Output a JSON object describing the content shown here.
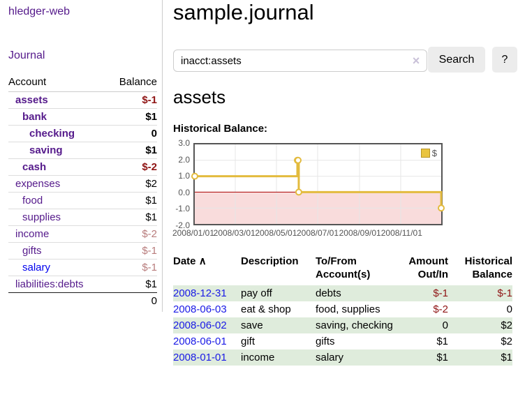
{
  "sidebar": {
    "brand": "hledger-web",
    "journal_link": "Journal",
    "table": {
      "account_header": "Account",
      "balance_header": "Balance",
      "accounts": [
        {
          "name": "assets",
          "depth": 0,
          "bold": true,
          "link": "visited",
          "balance": "$-1",
          "balance_style": "neg-strong"
        },
        {
          "name": "bank",
          "depth": 1,
          "bold": true,
          "link": "visited",
          "balance": "$1",
          "balance_style": "pos-strong"
        },
        {
          "name": "checking",
          "depth": 2,
          "bold": true,
          "link": "visited",
          "balance": "0",
          "balance_style": "pos-strong"
        },
        {
          "name": "saving",
          "depth": 2,
          "bold": true,
          "link": "visited",
          "balance": "$1",
          "balance_style": "pos-strong"
        },
        {
          "name": "cash",
          "depth": 1,
          "bold": true,
          "link": "visited",
          "balance": "$-2",
          "balance_style": "neg-strong"
        },
        {
          "name": "expenses",
          "depth": 0,
          "bold": false,
          "link": "visited",
          "balance": "$2",
          "balance_style": "pos"
        },
        {
          "name": "food",
          "depth": 1,
          "bold": false,
          "link": "visited",
          "balance": "$1",
          "balance_style": "pos"
        },
        {
          "name": "supplies",
          "depth": 1,
          "bold": false,
          "link": "visited",
          "balance": "$1",
          "balance_style": "pos"
        },
        {
          "name": "income",
          "depth": 0,
          "bold": false,
          "link": "visited",
          "balance": "$-2",
          "balance_style": "neg-muted"
        },
        {
          "name": "gifts",
          "depth": 1,
          "bold": false,
          "link": "visited",
          "balance": "$-1",
          "balance_style": "neg-muted"
        },
        {
          "name": "salary",
          "depth": 1,
          "bold": false,
          "link": "unvisited",
          "balance": "$-1",
          "balance_style": "neg-muted"
        },
        {
          "name": "liabilities:debts",
          "depth": 0,
          "bold": false,
          "link": "visited",
          "balance": "$1",
          "balance_style": "pos"
        }
      ],
      "total": "0"
    }
  },
  "main": {
    "title": "sample.journal",
    "search": {
      "value": "inacct:assets",
      "clear_icon": "×",
      "search_button": "Search",
      "help_button": "?"
    },
    "account_heading": "assets",
    "chart_heading": "Historical Balance:"
  },
  "chart_data": {
    "type": "line",
    "step": true,
    "title": "Historical Balance",
    "series": [
      {
        "name": "$",
        "color": "#e3bb3e",
        "points": [
          [
            "2008-01-01",
            1
          ],
          [
            "2008-06-01",
            2
          ],
          [
            "2008-06-02",
            2
          ],
          [
            "2008-06-03",
            0
          ],
          [
            "2008-12-31",
            -1
          ]
        ]
      }
    ],
    "xrange": [
      "2008-01-01",
      "2008-12-31"
    ],
    "ylim": [
      -2,
      3
    ],
    "yticks": [
      3,
      2,
      1,
      0,
      -1,
      -2
    ],
    "ytick_labels": [
      "3.0",
      "2.0",
      "1.0",
      "0.0",
      "-1.0",
      "-2.0"
    ],
    "xtick_dates": [
      "2008-01-01",
      "2008-03-01",
      "2008-05-01",
      "2008-07-01",
      "2008-09-01",
      "2008-11-01"
    ],
    "xtick_labels": [
      "2008/01/01",
      "2008/03/01",
      "2008/05/01",
      "2008/07/01",
      "2008/09/01",
      "2008/11/01"
    ],
    "grid": true,
    "grid_color": "#e6e6e6",
    "zero_line_color": "#aa0000",
    "negative_fill": "#f9dcdc",
    "legend": {
      "label": "$",
      "position": "top-right"
    }
  },
  "register": {
    "headers": {
      "date": "Date",
      "sort_icon": "∧",
      "description": "Description",
      "accounts": "To/From Account(s)",
      "amount": "Amount Out/In",
      "balance": "Historical Balance"
    },
    "rows": [
      {
        "date": "2008-12-31",
        "description": "pay off",
        "accounts": "debts",
        "amount": "$-1",
        "amount_neg": true,
        "balance": "$-1",
        "balance_neg": true
      },
      {
        "date": "2008-06-03",
        "description": "eat & shop",
        "accounts": "food, supplies",
        "amount": "$-2",
        "amount_neg": true,
        "balance": "0",
        "balance_neg": false
      },
      {
        "date": "2008-06-02",
        "description": "save",
        "accounts": "saving, checking",
        "amount": "0",
        "amount_neg": false,
        "balance": "$2",
        "balance_neg": false
      },
      {
        "date": "2008-06-01",
        "description": "gift",
        "accounts": "gifts",
        "amount": "$1",
        "amount_neg": false,
        "balance": "$2",
        "balance_neg": false
      },
      {
        "date": "2008-01-01",
        "description": "income",
        "accounts": "salary",
        "amount": "$1",
        "amount_neg": false,
        "balance": "$1",
        "balance_neg": false
      }
    ]
  }
}
